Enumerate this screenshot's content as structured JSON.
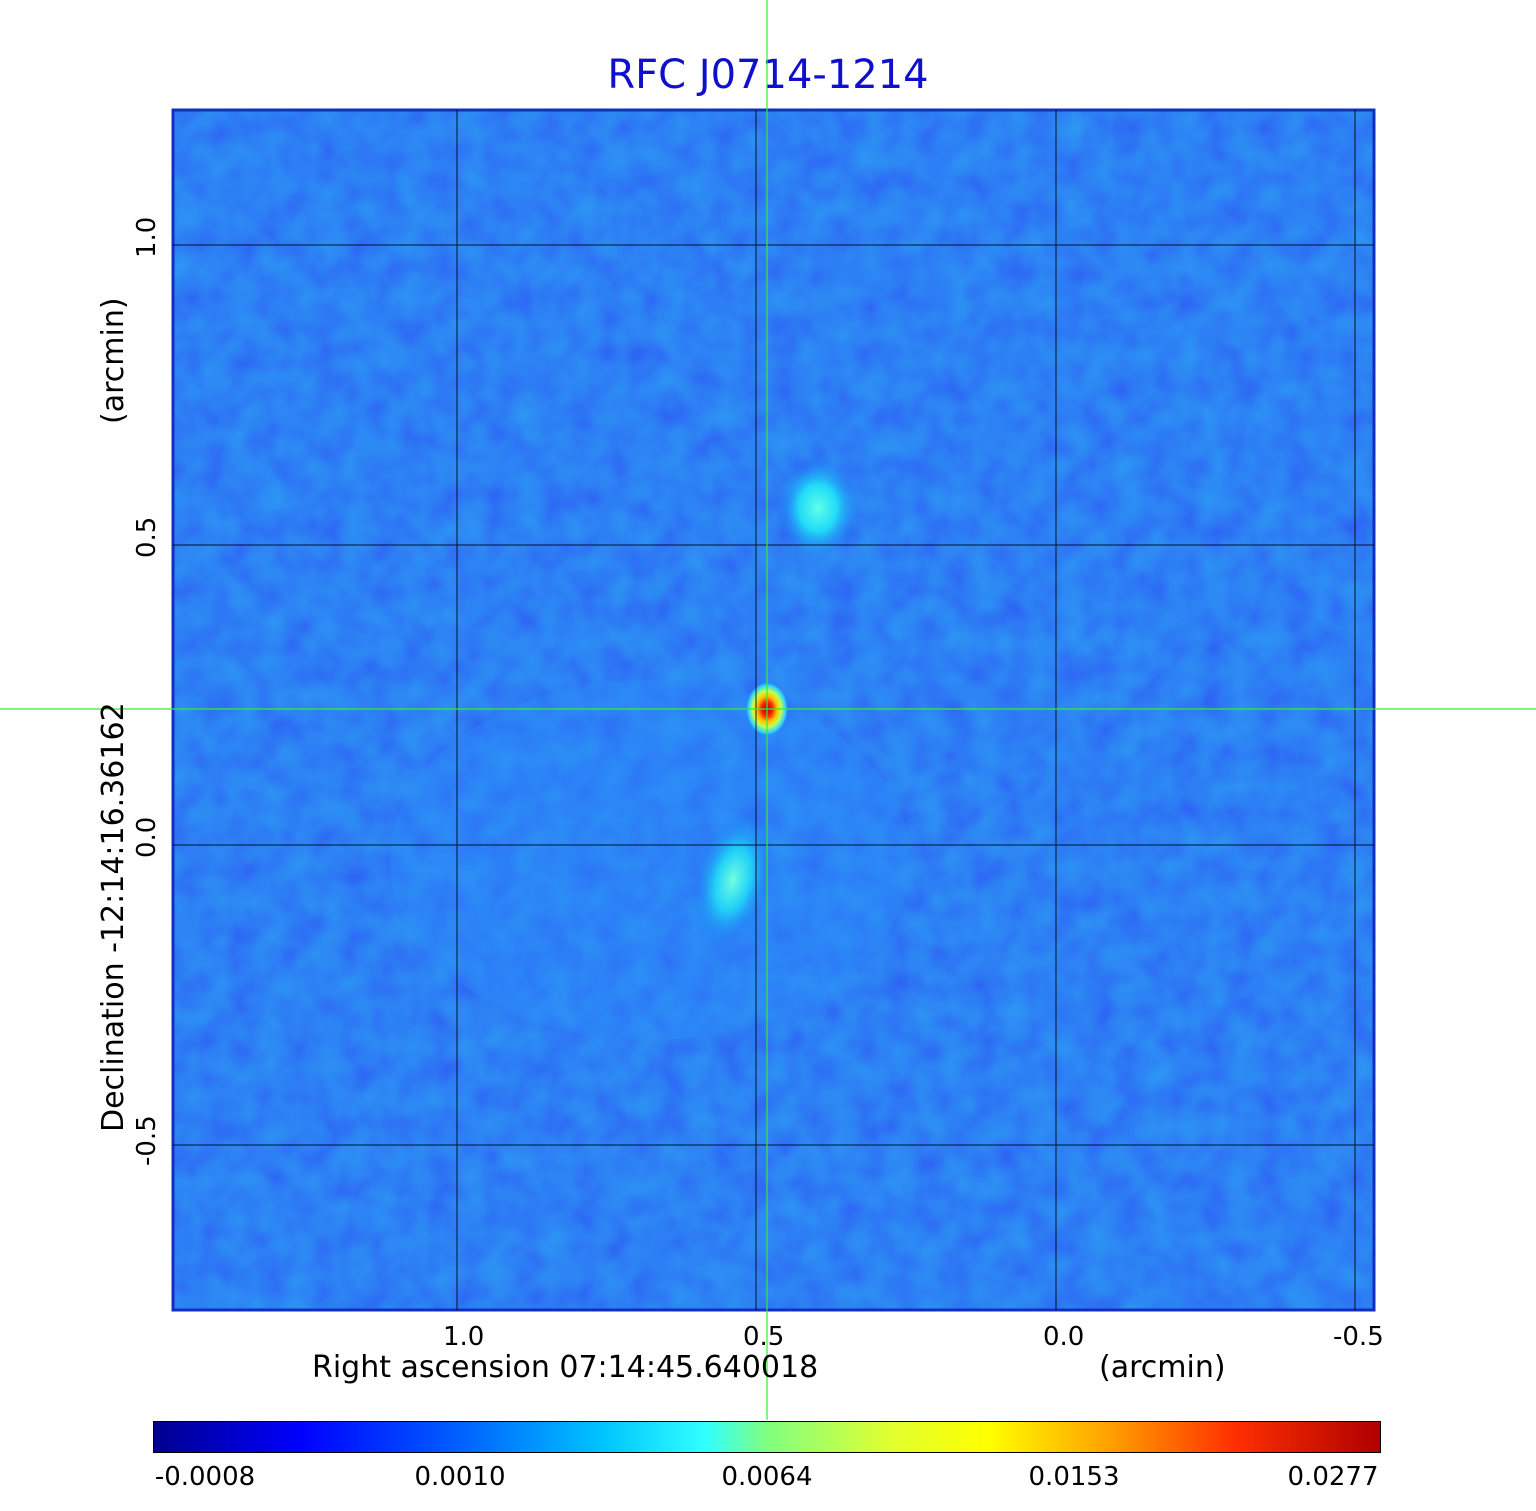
{
  "title": "RFC J0714-1214",
  "xaxis": {
    "label": "Right ascension  07:14:45.640018",
    "unit": "(arcmin)",
    "ticks": [
      "1.0",
      "0.5",
      "0.0",
      "-0.5"
    ]
  },
  "yaxis": {
    "label": "Declination  -12:14:16.36162",
    "unit": "(arcmin)",
    "ticks": [
      "1.0",
      "0.5",
      "0.0",
      "-0.5"
    ]
  },
  "colorbar": {
    "ticks": [
      "-0.0008",
      "0.0010",
      "0.0064",
      "0.0153",
      "0.0277"
    ]
  },
  "colors": {
    "title": "#1010cc",
    "background_map": "#1850f0",
    "crosshair": "#33ee33",
    "grid": "#000000"
  }
}
